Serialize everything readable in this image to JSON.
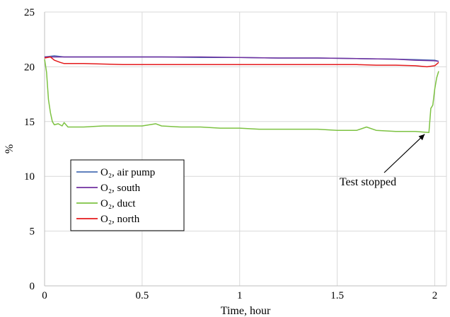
{
  "chart_data": {
    "type": "line",
    "xlabel": "Time, hour",
    "ylabel": "%",
    "xlim": [
      0,
      2.06
    ],
    "ylim": [
      0,
      25
    ],
    "x_ticks": [
      "0",
      "0.5",
      "1",
      "1.5",
      "2"
    ],
    "y_ticks": [
      "0",
      "5",
      "10",
      "15",
      "20",
      "25"
    ],
    "grid": true,
    "legend_position": "left-middle",
    "annotation": {
      "text": "Test stopped",
      "x": 1.97,
      "y": 14.1
    },
    "series": [
      {
        "name": "O₂, air pump",
        "color": "#4a6fb5",
        "x": [
          0,
          0.05,
          0.1,
          0.2,
          0.4,
          0.6,
          0.8,
          1.0,
          1.2,
          1.4,
          1.6,
          1.8,
          1.9,
          2.0,
          2.02
        ],
        "values": [
          20.9,
          21.0,
          20.9,
          20.9,
          20.9,
          20.9,
          20.85,
          20.85,
          20.8,
          20.8,
          20.75,
          20.7,
          20.65,
          20.6,
          20.5
        ]
      },
      {
        "name": "O₂, south",
        "color": "#7030a0",
        "x": [
          0,
          0.1,
          0.2,
          0.4,
          0.6,
          0.8,
          1.0,
          1.2,
          1.4,
          1.6,
          1.8,
          1.9,
          2.0,
          2.02
        ],
        "values": [
          20.9,
          20.9,
          20.9,
          20.9,
          20.9,
          20.9,
          20.85,
          20.8,
          20.8,
          20.75,
          20.7,
          20.6,
          20.55,
          20.5
        ]
      },
      {
        "name": "O₂, duct",
        "color": "#7dc242",
        "x": [
          0,
          0.01,
          0.02,
          0.03,
          0.04,
          0.05,
          0.07,
          0.09,
          0.1,
          0.12,
          0.2,
          0.3,
          0.4,
          0.5,
          0.57,
          0.6,
          0.7,
          0.8,
          0.9,
          1.0,
          1.1,
          1.2,
          1.3,
          1.4,
          1.5,
          1.6,
          1.65,
          1.7,
          1.8,
          1.9,
          1.97,
          1.98,
          1.99,
          2.0,
          2.01,
          2.02
        ],
        "values": [
          20.7,
          19.5,
          17.0,
          15.8,
          15.0,
          14.7,
          14.8,
          14.6,
          14.9,
          14.5,
          14.5,
          14.6,
          14.6,
          14.6,
          14.8,
          14.6,
          14.5,
          14.5,
          14.4,
          14.4,
          14.3,
          14.3,
          14.3,
          14.3,
          14.2,
          14.2,
          14.5,
          14.2,
          14.1,
          14.1,
          14.0,
          16.2,
          16.5,
          18.0,
          19.0,
          19.6
        ]
      },
      {
        "name": "O₂, north",
        "color": "#e41a1c",
        "x": [
          0,
          0.03,
          0.05,
          0.08,
          0.1,
          0.2,
          0.3,
          0.4,
          0.5,
          0.6,
          0.7,
          0.8,
          0.9,
          1.0,
          1.1,
          1.2,
          1.3,
          1.4,
          1.5,
          1.6,
          1.7,
          1.8,
          1.9,
          1.96,
          2.0,
          2.02
        ],
        "values": [
          20.8,
          20.9,
          20.6,
          20.4,
          20.3,
          20.3,
          20.25,
          20.2,
          20.2,
          20.2,
          20.2,
          20.2,
          20.2,
          20.2,
          20.2,
          20.2,
          20.2,
          20.2,
          20.2,
          20.2,
          20.15,
          20.15,
          20.1,
          20.0,
          20.1,
          20.4
        ]
      }
    ]
  }
}
